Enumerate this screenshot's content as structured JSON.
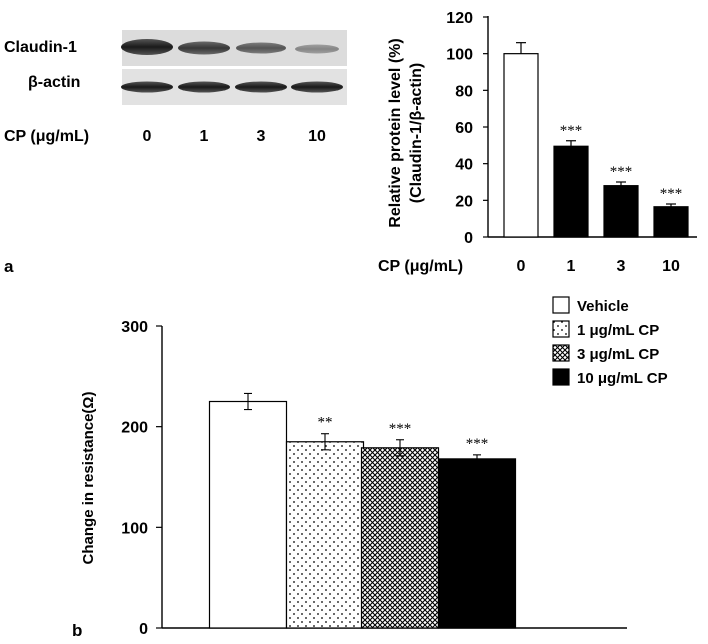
{
  "blot": {
    "rows": [
      "Claudin-1",
      "β-actin"
    ],
    "condition_label": "CP (μg/mL)",
    "lanes": [
      "0",
      "1",
      "3",
      "10"
    ]
  },
  "chart_data": [
    {
      "type": "bar",
      "panel": "a",
      "ylabel_line1": "Relative protein level  (%)",
      "ylabel_line2": "(Claudin-1/β-actin)",
      "xlabel": "CP (μg/mL)",
      "categories": [
        "0",
        "1",
        "3",
        "10"
      ],
      "values": [
        100,
        49.5,
        28,
        16.5
      ],
      "errors": [
        6,
        3,
        2,
        1.5
      ],
      "significance": [
        "",
        "***",
        "***",
        "***"
      ],
      "fills": [
        "white",
        "black",
        "black",
        "black"
      ],
      "ylim": [
        0,
        120
      ],
      "yticks": [
        0,
        20,
        40,
        60,
        80,
        100,
        120
      ],
      "grid": false
    },
    {
      "type": "bar",
      "panel": "b",
      "ylabel": "Change in resistance(Ω)",
      "series": [
        {
          "name": "Vehicle",
          "value": 225,
          "error": 8,
          "significance": "",
          "fill": "white"
        },
        {
          "name": "1 μg/mL CP",
          "value": 185,
          "error": 8,
          "significance": "**",
          "fill": "dots"
        },
        {
          "name": "3 μg/mL CP",
          "value": 179,
          "error": 8,
          "significance": "***",
          "fill": "crosshatch"
        },
        {
          "name": "10 μg/mL CP",
          "value": 168,
          "error": 4,
          "significance": "***",
          "fill": "black"
        }
      ],
      "ylim": [
        0,
        300
      ],
      "yticks": [
        0,
        100,
        200,
        300
      ],
      "legend": "top-right",
      "grid": false
    }
  ]
}
